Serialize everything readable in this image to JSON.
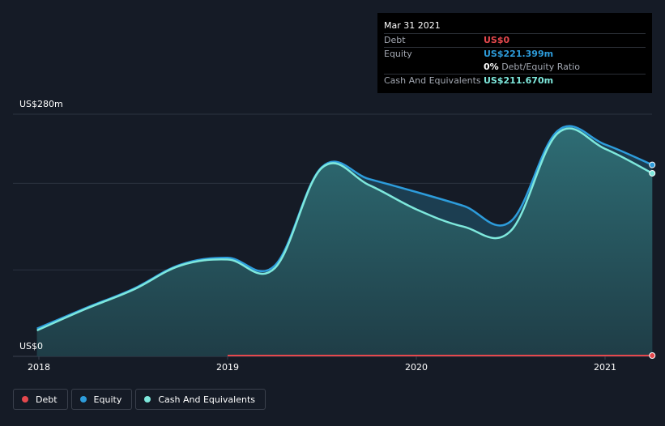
{
  "tooltip": {
    "date": "Mar 31 2021",
    "rows": [
      {
        "label": "Debt",
        "value": "US$0",
        "color": "#e5484d"
      },
      {
        "label": "Equity",
        "value": "US$221.399m",
        "color": "#2d9cdb"
      },
      {
        "ratio_value": "0%",
        "ratio_label": "Debt/Equity Ratio"
      },
      {
        "label": "Cash And Equivalents",
        "value": "US$211.670m",
        "color": "#7ee8dc"
      }
    ]
  },
  "legend": [
    {
      "label": "Debt",
      "color": "#e5484d"
    },
    {
      "label": "Equity",
      "color": "#2d9cdb"
    },
    {
      "label": "Cash And Equivalents",
      "color": "#7ee8dc"
    }
  ],
  "chart_data": {
    "type": "area",
    "ylim": [
      0,
      280
    ],
    "y_unit": "US$m",
    "y_tick_labels": [
      {
        "value": 280,
        "label": "US$280m"
      },
      {
        "value": 0,
        "label": "US$0"
      }
    ],
    "x_tick_labels": [
      {
        "value": 2018.0,
        "label": "2018"
      },
      {
        "value": 2019.0,
        "label": "2019"
      },
      {
        "value": 2020.0,
        "label": "2020"
      },
      {
        "value": 2021.0,
        "label": "2021"
      }
    ],
    "xlim": [
      2017.99,
      2021.25
    ],
    "grid": true,
    "legend_position": "bottom-left",
    "series": [
      {
        "name": "Debt",
        "color": "#e5484d",
        "points": [
          [
            2019.0,
            0
          ],
          [
            2019.5,
            0
          ],
          [
            2020.0,
            0
          ],
          [
            2020.5,
            0
          ],
          [
            2021.0,
            0
          ],
          [
            2021.25,
            0
          ]
        ]
      },
      {
        "name": "Equity",
        "color": "#2d9cdb",
        "points": [
          [
            2017.99,
            32
          ],
          [
            2018.25,
            56
          ],
          [
            2018.5,
            78
          ],
          [
            2018.75,
            106
          ],
          [
            2019.0,
            114
          ],
          [
            2019.25,
            105
          ],
          [
            2019.5,
            219
          ],
          [
            2019.75,
            205
          ],
          [
            2020.0,
            190
          ],
          [
            2020.25,
            174
          ],
          [
            2020.5,
            156
          ],
          [
            2020.75,
            261
          ],
          [
            2021.0,
            245
          ],
          [
            2021.25,
            221.399
          ]
        ]
      },
      {
        "name": "Cash And Equivalents",
        "color": "#7ee8dc",
        "points": [
          [
            2017.99,
            30
          ],
          [
            2018.25,
            55
          ],
          [
            2018.5,
            77
          ],
          [
            2018.75,
            105
          ],
          [
            2019.0,
            112
          ],
          [
            2019.25,
            102
          ],
          [
            2019.5,
            218
          ],
          [
            2019.75,
            198
          ],
          [
            2020.0,
            170
          ],
          [
            2020.25,
            150
          ],
          [
            2020.5,
            145
          ],
          [
            2020.75,
            258
          ],
          [
            2021.0,
            240
          ],
          [
            2021.25,
            211.67
          ]
        ]
      }
    ]
  }
}
